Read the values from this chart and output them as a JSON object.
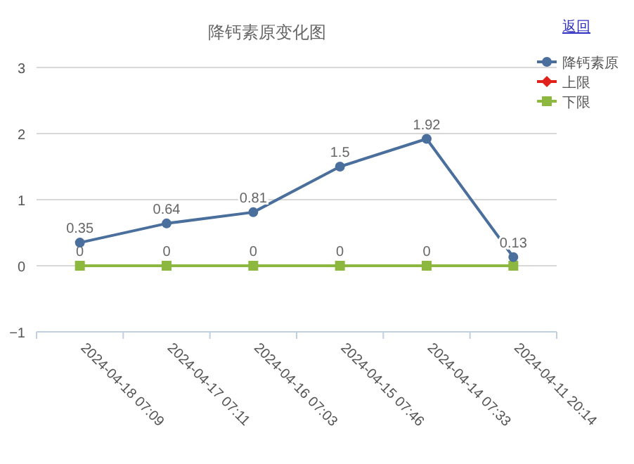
{
  "chart_data": {
    "type": "line",
    "title": "降钙素原变化图",
    "annotations": [
      "返回"
    ],
    "categories": [
      "2024-04-18 07:09",
      "2024-04-17 07:11",
      "2024-04-16 07:03",
      "2024-04-15 07:46",
      "2024-04-14 07:33",
      "2024-04-11 20:14"
    ],
    "series": [
      {
        "name": "降钙素原",
        "color": "#4a6f9c",
        "marker": "circle",
        "values": [
          0.35,
          0.64,
          0.81,
          1.5,
          1.92,
          0.13
        ],
        "value_labels": [
          "0.35",
          "0.64",
          "0.81",
          "1.5",
          "1.92",
          "0.13"
        ]
      },
      {
        "name": "上限",
        "color": "#e0201b",
        "marker": "diamond",
        "values": [
          null,
          null,
          null,
          null,
          null,
          null
        ]
      },
      {
        "name": "下限",
        "color": "#8cb83f",
        "marker": "square",
        "values": [
          0,
          0,
          0,
          0,
          0,
          0
        ],
        "value_labels": [
          "0",
          "0",
          "0",
          "0",
          "0",
          null
        ]
      }
    ],
    "ylim": [
      -1,
      3
    ],
    "yticks": [
      -1,
      0,
      1,
      2,
      3
    ],
    "grid": "y",
    "legend": "top right",
    "line_style": "solid"
  }
}
